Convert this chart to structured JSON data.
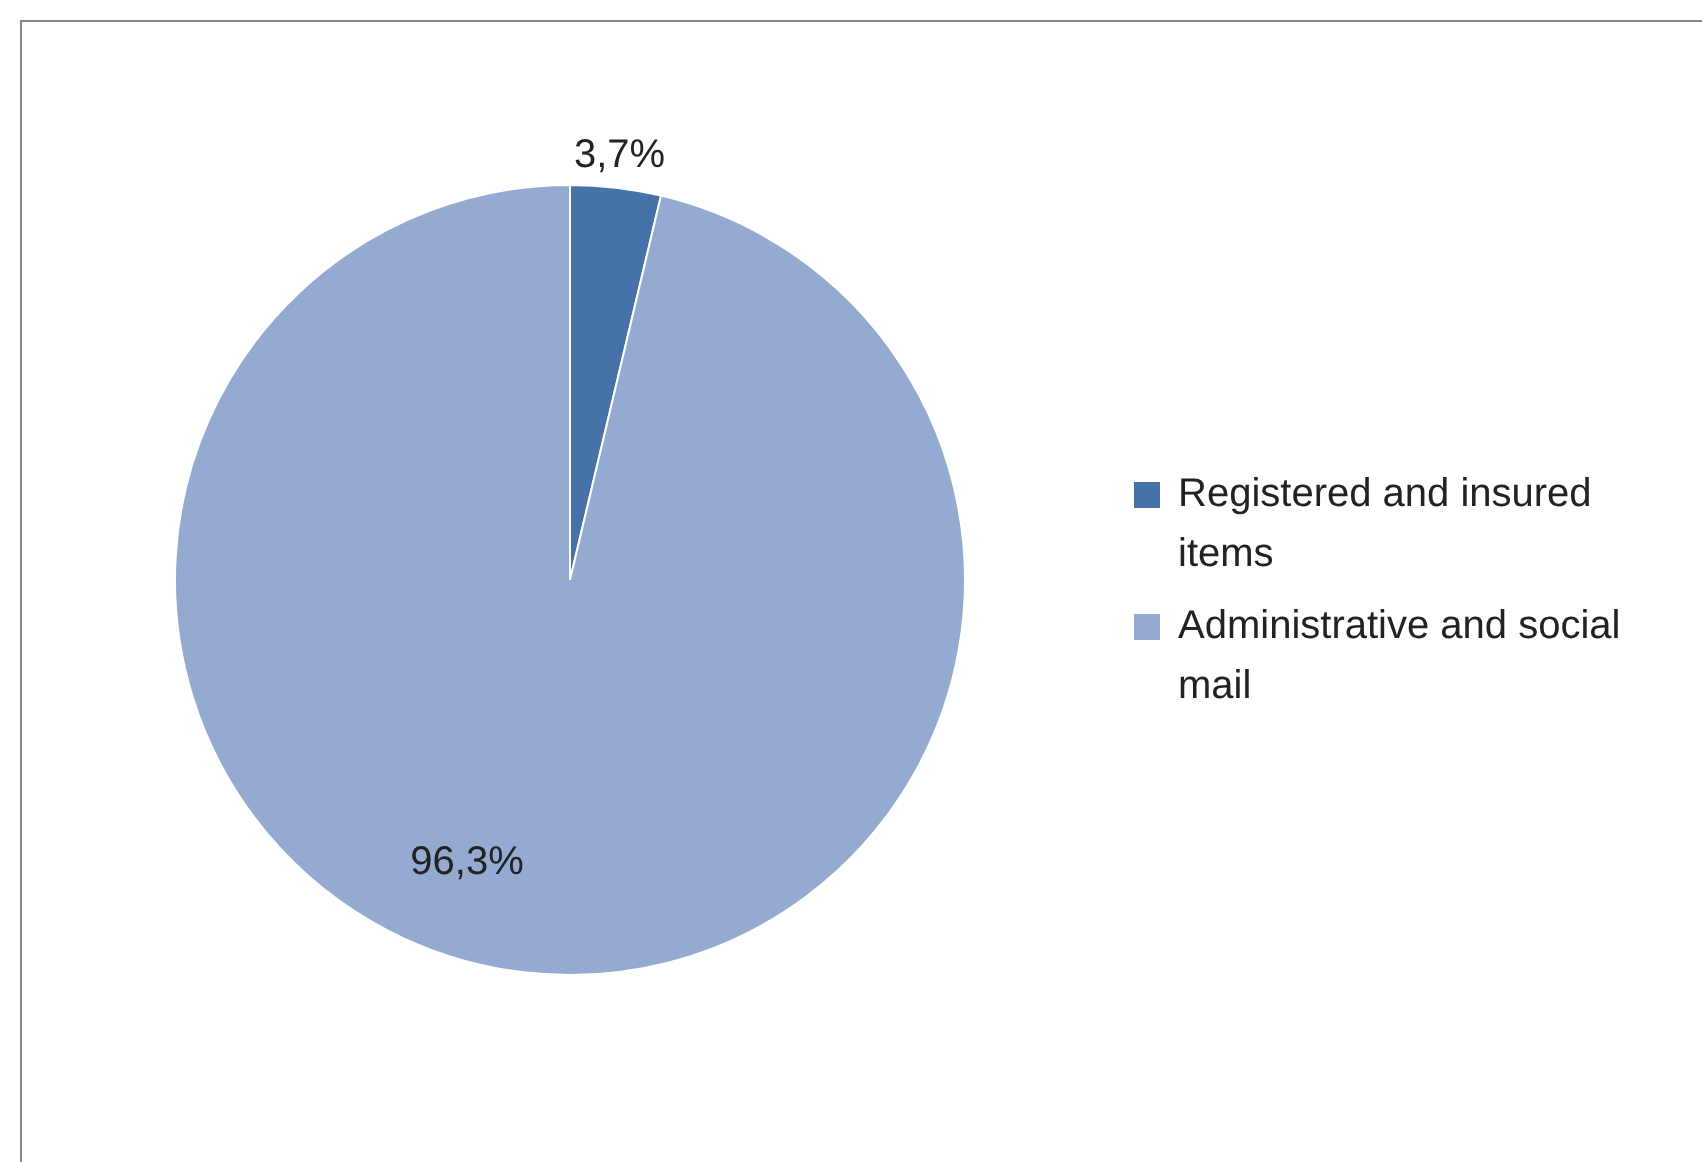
{
  "chart_data": {
    "type": "pie",
    "categories": [
      "Registered and insured items",
      "Administrative and social mail"
    ],
    "values": [
      3.7,
      96.3
    ],
    "colors": [
      "#4672a8",
      "#95aad1"
    ],
    "value_labels": [
      "3,7%",
      "96,3%"
    ],
    "legend": "right"
  }
}
